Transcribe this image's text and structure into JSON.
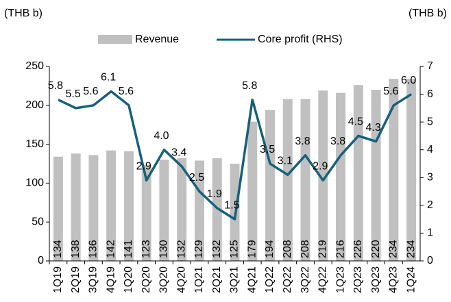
{
  "chart_data": {
    "type": "bar-line",
    "y_label": "(THB b)",
    "y2_label": "(THB b)",
    "categories": [
      "1Q19",
      "2Q19",
      "3Q19",
      "4Q19",
      "1Q20",
      "2Q20",
      "3Q20",
      "4Q20",
      "1Q21",
      "2Q21",
      "3Q21",
      "4Q21",
      "1Q22",
      "2Q22",
      "3Q22",
      "4Q22",
      "1Q23",
      "2Q23",
      "3Q23",
      "4Q23",
      "1Q24"
    ],
    "series": [
      {
        "name": "Revenue",
        "type": "bar",
        "color": "#c0c0c0",
        "values": [
          134,
          138,
          136,
          142,
          141,
          123,
          130,
          132,
          129,
          132,
          125,
          179,
          194,
          208,
          208,
          219,
          216,
          226,
          220,
          234,
          234
        ]
      },
      {
        "name": "Core profit (RHS)",
        "type": "line",
        "axis": "y2",
        "color": "#17607a",
        "values": [
          5.8,
          5.5,
          5.6,
          6.1,
          5.6,
          2.9,
          4.0,
          3.4,
          2.5,
          1.9,
          1.5,
          5.8,
          3.5,
          3.1,
          3.8,
          2.9,
          3.8,
          4.5,
          4.3,
          5.6,
          6.0
        ],
        "value_labels": [
          "5.8",
          "5.5",
          "5.6",
          "6.1",
          "5.6",
          "2.9",
          "4.0",
          "3.4",
          "2.5",
          "1.9",
          "1.5",
          "5.8",
          "3.5",
          "3.1",
          "3.8",
          "2.9",
          "3.8",
          "4.5",
          "4.3",
          "5.6",
          "6.0"
        ]
      }
    ],
    "ylim": [
      0,
      250
    ],
    "yticks": [
      0,
      50,
      100,
      150,
      200,
      250
    ],
    "y2lim": [
      0,
      7
    ],
    "y2ticks": [
      0,
      1,
      2,
      3,
      4,
      5,
      6,
      7
    ],
    "legend": "top"
  }
}
